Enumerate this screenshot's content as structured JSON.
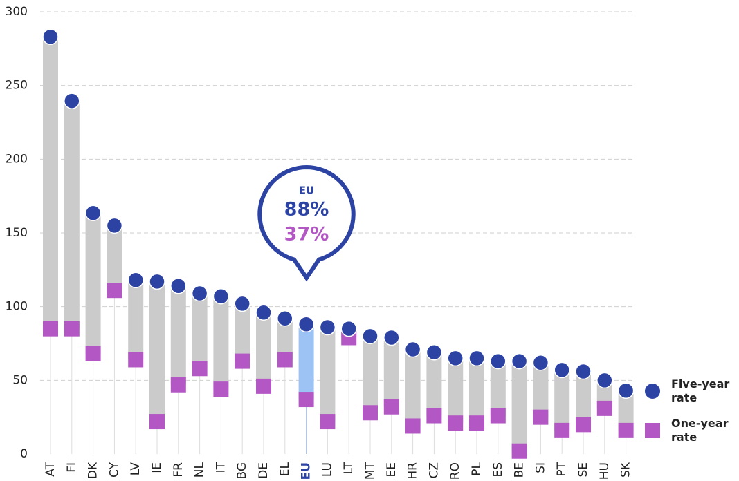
{
  "chart_data": {
    "type": "dumbbell",
    "categories": [
      "AT",
      "FI",
      "DK",
      "CY",
      "LV",
      "IE",
      "FR",
      "NL",
      "IT",
      "BG",
      "DE",
      "EL",
      "EU",
      "LU",
      "LT",
      "MT",
      "EE",
      "HR",
      "CZ",
      "RO",
      "PL",
      "ES",
      "BE",
      "SI",
      "PT",
      "SE",
      "HU",
      "SK"
    ],
    "series": [
      {
        "name": "Five-year rate",
        "color": "#2c43a3",
        "values": [
          283,
          239.5,
          163.5,
          155,
          118,
          117,
          114,
          109,
          107,
          102,
          96,
          92,
          88,
          86,
          85,
          80,
          79,
          71,
          69,
          65,
          65,
          63,
          63,
          62,
          57,
          56,
          50,
          43
        ]
      },
      {
        "name": "One-year rate",
        "color": "#b357c4",
        "values": [
          85,
          85,
          68,
          111,
          64,
          22,
          47,
          58,
          44,
          63,
          46,
          64,
          37,
          22,
          79,
          28,
          32,
          19,
          26,
          21,
          21,
          26,
          2,
          25,
          16,
          20,
          31,
          16
        ]
      }
    ],
    "highlight": "EU",
    "annotation": {
      "label": "EU",
      "lines": [
        "88%",
        "37%"
      ]
    },
    "ylim": [
      0,
      300
    ],
    "yticks": [
      0,
      50,
      100,
      150,
      200,
      250,
      300
    ],
    "grid": true
  }
}
